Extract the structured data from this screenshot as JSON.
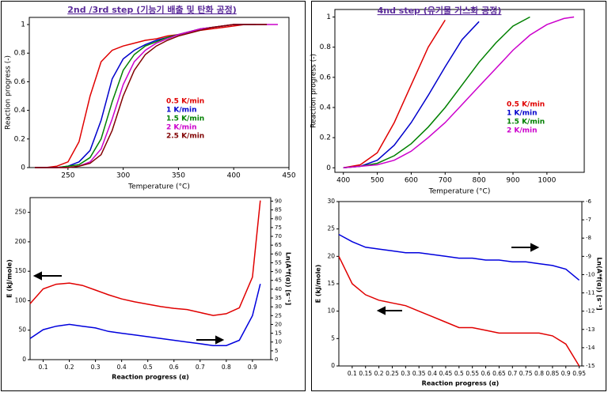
{
  "chart_data": [
    {
      "type": "line",
      "title": "2nd /3rd step (기능기 배출 및 탄화 공정)",
      "xlabel": "Temperature (°C)",
      "ylabel": "Reaction progress (-)",
      "x": [
        220,
        230,
        240,
        250,
        260,
        270,
        280,
        290,
        300,
        310,
        320,
        330,
        340,
        350,
        360,
        370,
        380,
        390,
        400,
        410,
        420,
        430,
        440
      ],
      "series": [
        {
          "name": "0.5 K/min",
          "color": "#e00000",
          "values": [
            0,
            0,
            0.01,
            0.04,
            0.18,
            0.5,
            0.74,
            0.82,
            0.85,
            0.87,
            0.89,
            0.9,
            0.92,
            0.93,
            0.95,
            0.96,
            0.97,
            0.98,
            0.99,
            1,
            1,
            null,
            null
          ]
        },
        {
          "name": "1 K/min",
          "color": "#0000cc",
          "values": [
            0,
            0,
            0,
            0.01,
            0.04,
            0.12,
            0.33,
            0.62,
            0.76,
            0.82,
            0.86,
            0.89,
            0.91,
            0.93,
            0.95,
            0.97,
            0.98,
            0.99,
            1,
            1,
            1,
            null,
            null
          ]
        },
        {
          "name": "1.5 K/min",
          "color": "#008000",
          "values": [
            0,
            0,
            0,
            0.01,
            0.02,
            0.07,
            0.2,
            0.46,
            0.68,
            0.79,
            0.85,
            0.88,
            0.91,
            0.93,
            0.95,
            0.97,
            0.98,
            0.99,
            1,
            1,
            1,
            1,
            null
          ]
        },
        {
          "name": "2 K/min",
          "color": "#cc00cc",
          "values": [
            0,
            0,
            0,
            0,
            0.01,
            0.04,
            0.13,
            0.34,
            0.58,
            0.74,
            0.82,
            0.87,
            0.9,
            0.93,
            0.95,
            0.97,
            0.98,
            0.99,
            1,
            1,
            1,
            1,
            1
          ]
        },
        {
          "name": "2.5 K/min",
          "color": "#800000",
          "values": [
            0,
            0,
            0,
            0,
            0.01,
            0.03,
            0.09,
            0.26,
            0.5,
            0.68,
            0.79,
            0.85,
            0.89,
            0.92,
            0.94,
            0.96,
            0.98,
            0.99,
            1,
            1,
            1,
            1,
            null
          ]
        }
      ],
      "xlim": [
        215,
        450
      ],
      "xticks": [
        250,
        300,
        350,
        400,
        450
      ],
      "ylim": [
        0,
        1.05
      ],
      "yticks": [
        0,
        0.2,
        0.4,
        0.6,
        0.8,
        1
      ],
      "legend": "center-right"
    },
    {
      "type": "line",
      "xlabel": "Reaction progress (α)",
      "ylabel": "E (kJ/mole)",
      "y2label": "Ln(A*f(α)) [s⁻¹]",
      "x": [
        0.05,
        0.1,
        0.15,
        0.2,
        0.25,
        0.3,
        0.35,
        0.4,
        0.45,
        0.5,
        0.55,
        0.6,
        0.65,
        0.7,
        0.75,
        0.8,
        0.85,
        0.9,
        0.93
      ],
      "series": [
        {
          "color": "#e00000",
          "values": [
            95,
            120,
            128,
            130,
            126,
            118,
            110,
            103,
            98,
            94,
            90,
            87,
            85,
            80,
            75,
            78,
            88,
            140,
            270
          ]
        },
        {
          "color": "#0000dd",
          "axis": "y2",
          "values": [
            12,
            17,
            19,
            20,
            19,
            18,
            16,
            15,
            14,
            13,
            12,
            11,
            10,
            9,
            8,
            8,
            11,
            25,
            43
          ]
        }
      ],
      "xlim": [
        0.05,
        0.97
      ],
      "xticks": [
        0.1,
        0.2,
        0.3,
        0.4,
        0.5,
        0.6,
        0.7,
        0.8,
        0.9
      ],
      "ylim": [
        0,
        275
      ],
      "yticks": [
        0,
        50,
        100,
        150,
        200,
        250
      ],
      "y2lim": [
        0,
        92
      ],
      "y2ticks": [
        0,
        5,
        10,
        15,
        20,
        25,
        30,
        35,
        40,
        45,
        50,
        55,
        60,
        65,
        70,
        75,
        80,
        85,
        90
      ]
    },
    {
      "type": "line",
      "title": "4nd step (유기물 가스화 공정)",
      "xlabel": "Temperature (°C)",
      "ylabel": "Reaction progress (-)",
      "x": [
        400,
        450,
        500,
        550,
        600,
        650,
        700,
        750,
        800,
        850,
        900,
        950,
        1000,
        1050,
        1080
      ],
      "series": [
        {
          "name": "0.5 K/min",
          "color": "#e00000",
          "values": [
            0,
            0.02,
            0.1,
            0.3,
            0.55,
            0.8,
            0.98,
            null,
            null,
            null,
            null,
            null,
            null,
            null,
            null
          ]
        },
        {
          "name": "1 K/min",
          "color": "#0000cc",
          "values": [
            0,
            0.01,
            0.05,
            0.15,
            0.3,
            0.48,
            0.67,
            0.85,
            0.97,
            null,
            null,
            null,
            null,
            null,
            null
          ]
        },
        {
          "name": "1.5 K/min",
          "color": "#008000",
          "values": [
            0,
            0.01,
            0.03,
            0.08,
            0.16,
            0.27,
            0.4,
            0.55,
            0.7,
            0.83,
            0.94,
            1,
            null,
            null,
            null
          ]
        },
        {
          "name": "2 K/min",
          "color": "#cc00cc",
          "values": [
            0,
            0.01,
            0.02,
            0.05,
            0.11,
            0.2,
            0.3,
            0.42,
            0.54,
            0.66,
            0.78,
            0.88,
            0.95,
            0.99,
            1
          ]
        }
      ],
      "xlim": [
        375,
        1110
      ],
      "xticks": [
        400,
        500,
        600,
        700,
        800,
        900,
        1000
      ],
      "ylim": [
        -0.03,
        1.05
      ],
      "yticks": [
        0,
        0.2,
        0.4,
        0.6,
        0.8,
        1
      ],
      "legend": "center-right"
    },
    {
      "type": "line",
      "xlabel": "Reaction progress (α)",
      "ylabel": "E (kJ/mole)",
      "y2label": "Ln(A*f(α)) [s⁻¹]",
      "x": [
        0.05,
        0.1,
        0.15,
        0.2,
        0.25,
        0.3,
        0.35,
        0.4,
        0.45,
        0.5,
        0.55,
        0.6,
        0.65,
        0.7,
        0.75,
        0.8,
        0.85,
        0.9,
        0.95
      ],
      "series": [
        {
          "color": "#e00000",
          "values": [
            20,
            15,
            13,
            12,
            11.5,
            11,
            10,
            9,
            8,
            7,
            7,
            6.5,
            6,
            6,
            6,
            6,
            5.5,
            4,
            0
          ]
        },
        {
          "color": "#0000dd",
          "axis": "y2",
          "values": [
            -7.8,
            -8.2,
            -8.5,
            -8.6,
            -8.7,
            -8.8,
            -8.8,
            -8.9,
            -9,
            -9.1,
            -9.1,
            -9.2,
            -9.2,
            -9.3,
            -9.3,
            -9.4,
            -9.5,
            -9.7,
            -10.3
          ]
        }
      ],
      "xlim": [
        0.05,
        0.96
      ],
      "xticks": [
        0.1,
        0.15,
        0.2,
        0.25,
        0.3,
        0.35,
        0.4,
        0.45,
        0.5,
        0.55,
        0.6,
        0.65,
        0.7,
        0.75,
        0.8,
        0.85,
        0.9,
        0.95
      ],
      "ylim": [
        0,
        30
      ],
      "yticks": [
        0,
        5,
        10,
        15,
        20,
        25,
        30
      ],
      "y2lim": [
        -15,
        -6
      ],
      "y2ticks": [
        -15,
        -14,
        -13,
        -12,
        -11,
        -10,
        -9,
        -8,
        -7,
        -6
      ]
    }
  ]
}
